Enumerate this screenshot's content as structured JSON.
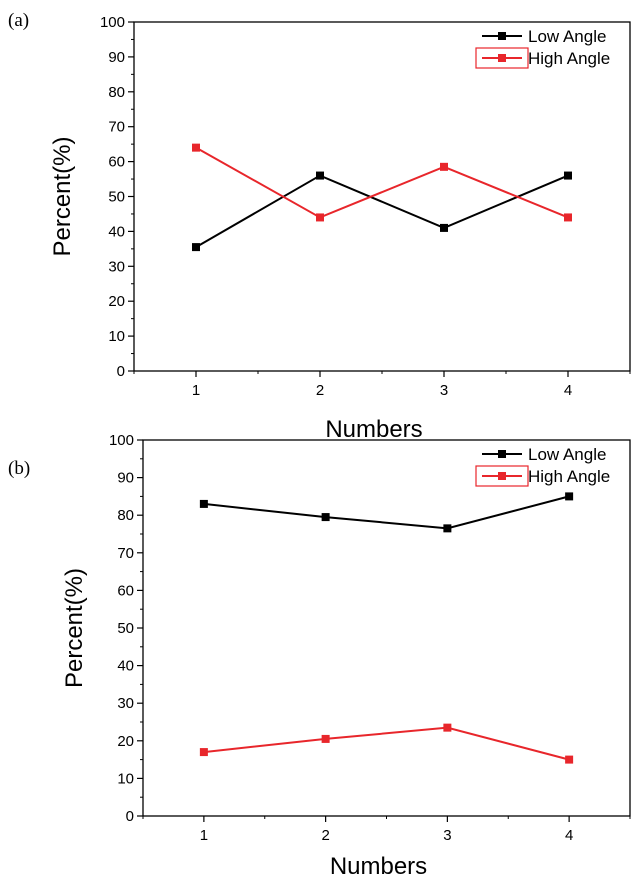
{
  "chart_data": [
    {
      "panel_label": "(a)",
      "type": "line",
      "title": "",
      "xlabel": "Numbers",
      "ylabel": "Percent(%)",
      "x": [
        1,
        2,
        3,
        4
      ],
      "x_ticks": [
        "1",
        "2",
        "3",
        "4"
      ],
      "ylim": [
        0,
        100
      ],
      "y_ticks": [
        "0",
        "10",
        "20",
        "30",
        "40",
        "50",
        "60",
        "70",
        "80",
        "90",
        "100"
      ],
      "grid": false,
      "legend_position": "top-right",
      "series": [
        {
          "name": "Low Angle",
          "color": "#000000",
          "marker": "square",
          "values": [
            35.5,
            56,
            41,
            56
          ]
        },
        {
          "name": "High Angle",
          "color": "#e8262b",
          "marker": "square",
          "values": [
            64,
            44,
            58.5,
            44
          ]
        }
      ]
    },
    {
      "panel_label": "(b)",
      "type": "line",
      "title": "",
      "xlabel": "Numbers",
      "ylabel": "Percent(%)",
      "x": [
        1,
        2,
        3,
        4
      ],
      "x_ticks": [
        "1",
        "2",
        "3",
        "4"
      ],
      "ylim": [
        0,
        100
      ],
      "y_ticks": [
        "0",
        "10",
        "20",
        "30",
        "40",
        "50",
        "60",
        "70",
        "80",
        "90",
        "100"
      ],
      "grid": false,
      "legend_position": "top-right",
      "series": [
        {
          "name": "Low Angle",
          "color": "#000000",
          "marker": "square",
          "values": [
            83,
            79.5,
            76.5,
            85
          ]
        },
        {
          "name": "High Angle",
          "color": "#e8262b",
          "marker": "square",
          "values": [
            17,
            20.5,
            23.5,
            15
          ]
        }
      ]
    }
  ]
}
